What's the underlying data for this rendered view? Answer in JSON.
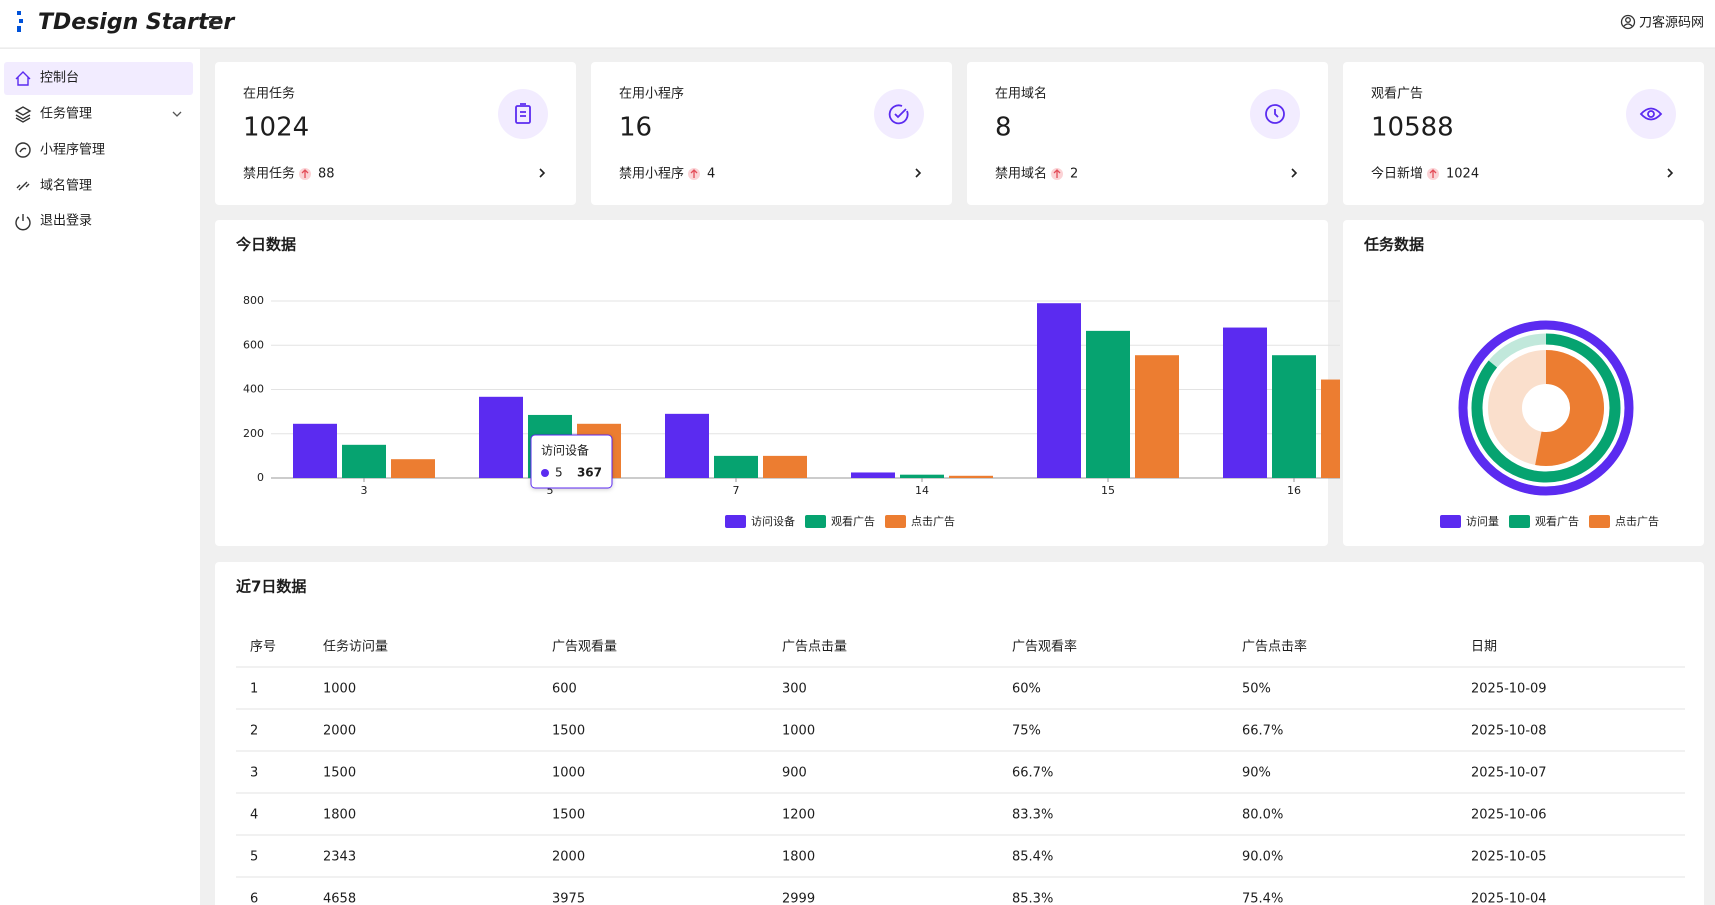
{
  "header": {
    "title": "TDesign Starter",
    "user": "刀客源码网"
  },
  "menu": [
    "控制台",
    "任务管理",
    "小程序管理",
    "域名管理",
    "退出登录"
  ],
  "stats": [
    {
      "label": "在用任务",
      "value": 1024,
      "sub_label": "禁用任务",
      "sub_value": 88
    },
    {
      "label": "在用小程序",
      "value": 16,
      "sub_label": "禁用小程序",
      "sub_value": 4
    },
    {
      "label": "在用域名",
      "value": 8,
      "sub_label": "禁用域名",
      "sub_value": 2
    },
    {
      "label": "观看广告",
      "value": 10588,
      "sub_label": "今日新增",
      "sub_value": 1024
    }
  ],
  "chart_data": [
    {
      "type": "bar",
      "title": "今日数据",
      "categories": [
        "3",
        "5",
        "7",
        "14",
        "15",
        "16"
      ],
      "series": [
        {
          "name": "访问设备",
          "color": "#5b2bf0",
          "values": [
            245,
            367,
            290,
            25,
            790,
            680
          ]
        },
        {
          "name": "观看广告",
          "color": "#06a370",
          "values": [
            150,
            285,
            100,
            15,
            665,
            555
          ]
        },
        {
          "name": "点击广告",
          "color": "#ec7d31",
          "values": [
            85,
            245,
            100,
            10,
            555,
            445
          ]
        }
      ],
      "ylim": [
        0,
        800
      ],
      "yticks": [
        0,
        200,
        400,
        600,
        800
      ],
      "grid": true,
      "legend": "bottom"
    },
    {
      "type": "donut",
      "title": "任务数据",
      "categories": [
        "访问量",
        "观看广告",
        "点击广告"
      ],
      "colors": [
        "#5b2bf0",
        "#06a370",
        "#ec7d31"
      ],
      "values": [
        100,
        86,
        53
      ],
      "ylim": [
        0,
        100
      ],
      "legend": "bottom"
    }
  ],
  "table": {
    "title": "近7日数据",
    "columns": [
      "序号",
      "任务访问量",
      "广告观看量",
      "广告点击量",
      "广告观看率",
      "广告点击率",
      "日期"
    ],
    "rows": [
      [
        1,
        1000,
        600,
        300,
        "60%",
        "50%",
        "2025-10-09"
      ],
      [
        2,
        2000,
        1500,
        1000,
        "75%",
        "66.7%",
        "2025-10-08"
      ],
      [
        3,
        1500,
        1000,
        900,
        "66.7%",
        "90%",
        "2025-10-07"
      ],
      [
        4,
        1800,
        1500,
        1200,
        "83.3%",
        "80.0%",
        "2025-10-06"
      ],
      [
        5,
        2343,
        2000,
        1800,
        "85.4%",
        "90.0%",
        "2025-10-05"
      ],
      [
        6,
        4658,
        3975,
        2999,
        "85.3%",
        "75.4%",
        "2025-10-04"
      ]
    ]
  }
}
